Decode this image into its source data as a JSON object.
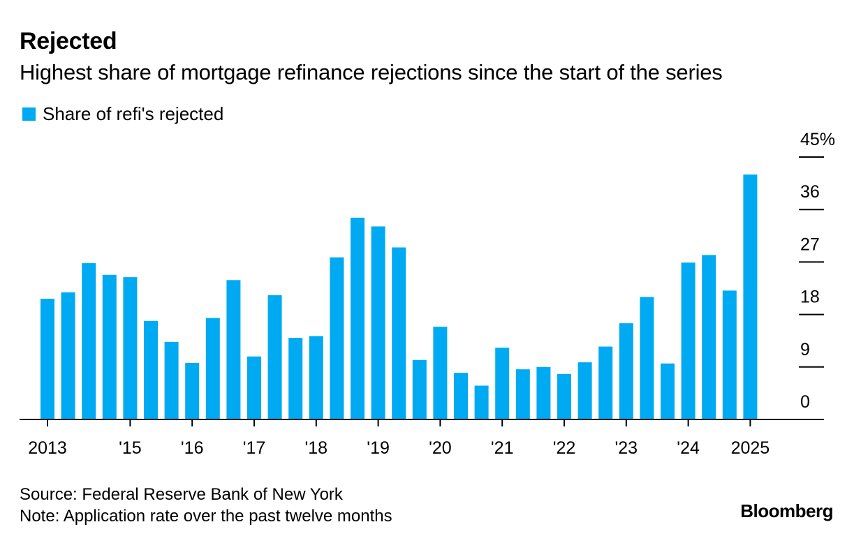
{
  "chart_data": {
    "type": "bar",
    "title": "Rejected",
    "subtitle": "Highest share of mortgage refinance rejections since the start of the series",
    "legend": {
      "label": "Share of refi's rejected",
      "placement": "top-left"
    },
    "series": [
      {
        "name": "Share of refi's rejected",
        "values": [
          20.7,
          21.8,
          26.8,
          24.8,
          24.4,
          16.9,
          13.3,
          9.7,
          17.4,
          23.9,
          10.8,
          21.3,
          14.0,
          14.3,
          27.8,
          34.6,
          33.1,
          29.5,
          10.2,
          15.9,
          8.0,
          5.8,
          12.3,
          8.6,
          9.0,
          7.8,
          9.8,
          12.5,
          16.5,
          21.0,
          9.6,
          26.9,
          28.2,
          22.1,
          42.0
        ]
      }
    ],
    "x_tick_labels": [
      {
        "index": 0,
        "label": "2013"
      },
      {
        "index": 4,
        "label": "'15"
      },
      {
        "index": 7,
        "label": "'16"
      },
      {
        "index": 10,
        "label": "'17"
      },
      {
        "index": 13,
        "label": "'18"
      },
      {
        "index": 16,
        "label": "'19"
      },
      {
        "index": 19,
        "label": "'20"
      },
      {
        "index": 22,
        "label": "'21"
      },
      {
        "index": 25,
        "label": "'22"
      },
      {
        "index": 28,
        "label": "'23"
      },
      {
        "index": 31,
        "label": "'24"
      },
      {
        "index": 34,
        "label": "2025"
      }
    ],
    "y_ticks": [
      0,
      9,
      18,
      27,
      36,
      45
    ],
    "y_tick_labels": [
      "0",
      "9",
      "18",
      "27",
      "36",
      "45%"
    ],
    "ylim": [
      0,
      45
    ],
    "xlabel": "",
    "ylabel": "",
    "grid": false,
    "y_axis_side": "right"
  },
  "colors": {
    "bar": "#00aaf2",
    "axis": "#000000",
    "text": "#000000"
  },
  "footer": {
    "source": "Source: Federal Reserve Bank of New York",
    "note": "Note: Application rate over the past twelve months",
    "brand": "Bloomberg"
  }
}
